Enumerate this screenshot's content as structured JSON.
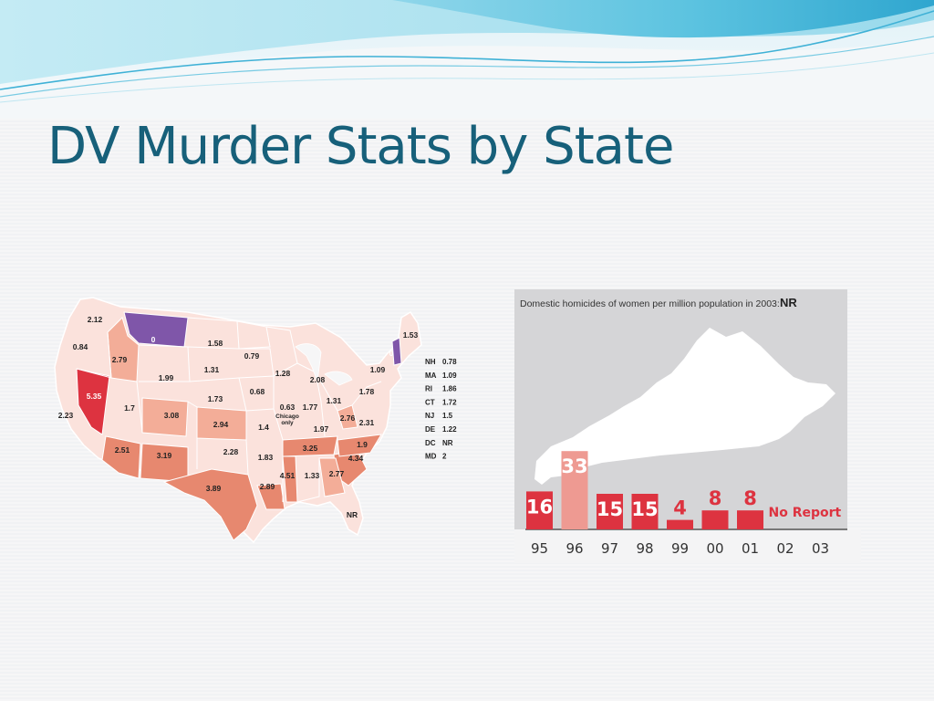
{
  "slide": {
    "title": "DV Murder Stats by State"
  },
  "colors": {
    "title": "#17607a",
    "banner_blue": "#5cc3e0",
    "state_base": "#fbe2dc",
    "state_mid": "#f3ad98",
    "state_high": "#e7886f",
    "state_max": "#dd3340",
    "state_zero": "#7f56a9",
    "bar_red": "#dd3340",
    "bar_light": "#ee9a92"
  },
  "map": {
    "state_values": [
      {
        "label": "2.12",
        "shade": "base"
      },
      {
        "label": "0.84",
        "shade": "base"
      },
      {
        "label": "2.79",
        "shade": "mid"
      },
      {
        "label": "0",
        "shade": "zero"
      },
      {
        "label": "1.58",
        "shade": "base"
      },
      {
        "label": "0.79",
        "shade": "base"
      },
      {
        "label": "1.99",
        "shade": "base"
      },
      {
        "label": "1.31",
        "shade": "base"
      },
      {
        "label": "1.28",
        "shade": "base"
      },
      {
        "label": "2.08",
        "shade": "base"
      },
      {
        "label": "1.09",
        "shade": "base"
      },
      {
        "label": "1.53",
        "shade": "base"
      },
      {
        "label": "0",
        "shade": "zero"
      },
      {
        "label": "5.35",
        "shade": "max"
      },
      {
        "label": "1.73",
        "shade": "base"
      },
      {
        "label": "0.68",
        "shade": "base"
      },
      {
        "label": "1.78",
        "shade": "base"
      },
      {
        "label": "1.31",
        "shade": "base"
      },
      {
        "label": "2.23",
        "shade": "base"
      },
      {
        "label": "1.7",
        "shade": "base"
      },
      {
        "label": "3.08",
        "shade": "mid"
      },
      {
        "label": "2.94",
        "shade": "mid"
      },
      {
        "label": "1.4",
        "shade": "base"
      },
      {
        "label": "0.63",
        "shade": "base"
      },
      {
        "label": "1.77",
        "shade": "base"
      },
      {
        "label": "2.76",
        "shade": "mid"
      },
      {
        "label": "2.31",
        "shade": "base"
      },
      {
        "label": "1.97",
        "shade": "base"
      },
      {
        "label": "1.9",
        "shade": "base"
      },
      {
        "label": "2.51",
        "shade": "mid"
      },
      {
        "label": "3.19",
        "shade": "mid"
      },
      {
        "label": "2.28",
        "shade": "base"
      },
      {
        "label": "1.83",
        "shade": "base"
      },
      {
        "label": "3.25",
        "shade": "mid"
      },
      {
        "label": "4.34",
        "shade": "mid"
      },
      {
        "label": "4.51",
        "shade": "mid"
      },
      {
        "label": "1.33",
        "shade": "base"
      },
      {
        "label": "2.77",
        "shade": "mid"
      },
      {
        "label": "3.89",
        "shade": "mid"
      },
      {
        "label": "2.89",
        "shade": "mid"
      },
      {
        "label": "NR",
        "shade": "base"
      }
    ],
    "chicago_note": [
      "Chicago",
      "only"
    ],
    "legend": [
      {
        "abbr": "NH",
        "value": "0.78"
      },
      {
        "abbr": "MA",
        "value": "1.09"
      },
      {
        "abbr": "RI",
        "value": "1.86"
      },
      {
        "abbr": "CT",
        "value": "1.72"
      },
      {
        "abbr": "NJ",
        "value": "1.5"
      },
      {
        "abbr": "DE",
        "value": "1.22"
      },
      {
        "abbr": "DC",
        "value": "NR"
      },
      {
        "abbr": "MD",
        "value": "2"
      }
    ]
  },
  "chart_data": {
    "type": "bar",
    "title": "Domestic homicides of women per million population in 2003:",
    "title_value": "NR",
    "xlabel": "",
    "ylabel": "",
    "categories": [
      "95",
      "96",
      "97",
      "98",
      "99",
      "00",
      "01",
      "02",
      "03"
    ],
    "values": [
      16,
      33,
      15,
      15,
      4,
      8,
      8,
      null,
      null
    ],
    "value_labels": [
      "16",
      "33",
      "15",
      "15",
      "4",
      "8",
      "8",
      "",
      ""
    ],
    "missing_note": "No Report",
    "ylim": [
      0,
      35
    ]
  }
}
